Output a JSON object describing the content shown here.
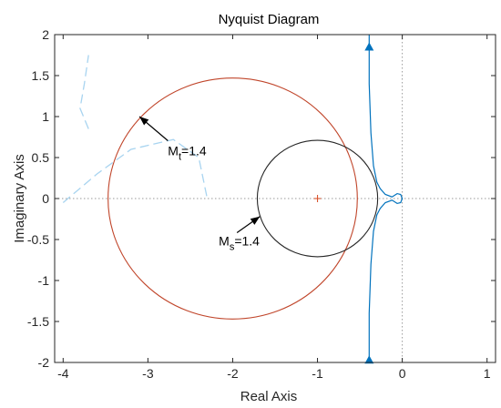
{
  "chart_data": {
    "type": "line",
    "title": "Nyquist Diagram",
    "xlabel": "Real Axis",
    "ylabel": "Imaginary Axis",
    "xlim": [
      -4.1,
      1.1
    ],
    "ylim": [
      -2,
      2
    ],
    "x_ticks": [
      "-4",
      "-3",
      "-2",
      "-1",
      "0",
      "1"
    ],
    "y_ticks": [
      "2",
      "1.5",
      "1",
      "0.5",
      "0",
      "-0.5",
      "-1",
      "-1.5",
      "-2"
    ],
    "grid": false,
    "colors": {
      "nyquist": "#0072bd",
      "mt_circle": "#c0452a",
      "ms_circle": "#262626",
      "critical_point": "#d9542f",
      "faint_arc": "#a8d4f0",
      "zero_lines": "#9a9a9a"
    },
    "series": [
      {
        "points": [
          [
            -0.39,
            2.0
          ],
          [
            -0.39,
            1.4
          ],
          [
            -0.37,
            0.8
          ],
          [
            -0.34,
            0.4
          ],
          [
            -0.3,
            0.2
          ],
          [
            -0.26,
            0.12
          ],
          [
            -0.2,
            0.05
          ],
          [
            -0.12,
            0.02
          ],
          [
            -0.06,
            0.06
          ],
          [
            -0.02,
            0.05
          ],
          [
            0.0,
            0.0
          ],
          [
            -0.02,
            -0.05
          ],
          [
            -0.06,
            -0.06
          ],
          [
            -0.12,
            -0.02
          ],
          [
            -0.2,
            -0.05
          ],
          [
            -0.26,
            -0.12
          ],
          [
            -0.3,
            -0.2
          ],
          [
            -0.34,
            -0.4
          ],
          [
            -0.37,
            -0.8
          ],
          [
            -0.39,
            -1.4
          ],
          [
            -0.39,
            -2.0
          ]
        ]
      }
    ],
    "circles": [
      {
        "center": [
          -2.0,
          0.0
        ],
        "radius": 1.47,
        "label_main": "M",
        "label_sub": "t",
        "label_rest": "=1.4",
        "arrow_to": [
          -3.1,
          1.0
        ],
        "label_at": [
          -2.7,
          0.55
        ]
      },
      {
        "center": [
          -1.0,
          0.0
        ],
        "radius": 0.71,
        "label_main": "M",
        "label_sub": "s",
        "label_rest": "=1.4",
        "arrow_to": [
          -1.68,
          -0.22
        ],
        "label_at": [
          -2.1,
          -0.55
        ]
      }
    ],
    "critical_point": [
      -1,
      0
    ],
    "faint_arcs": [
      {
        "points": [
          [
            -4.0,
            -0.05
          ],
          [
            -3.6,
            0.3
          ],
          [
            -3.2,
            0.6
          ],
          [
            -2.7,
            0.72
          ],
          [
            -2.4,
            0.5
          ],
          [
            -2.3,
            0.0
          ]
        ]
      },
      {
        "points": [
          [
            -3.7,
            0.85
          ],
          [
            -3.8,
            1.1
          ],
          [
            -3.75,
            1.4
          ],
          [
            -3.7,
            1.75
          ]
        ]
      }
    ],
    "arrow_markers": [
      [
        -0.39,
        1.85
      ],
      [
        -0.39,
        -1.97
      ]
    ]
  }
}
